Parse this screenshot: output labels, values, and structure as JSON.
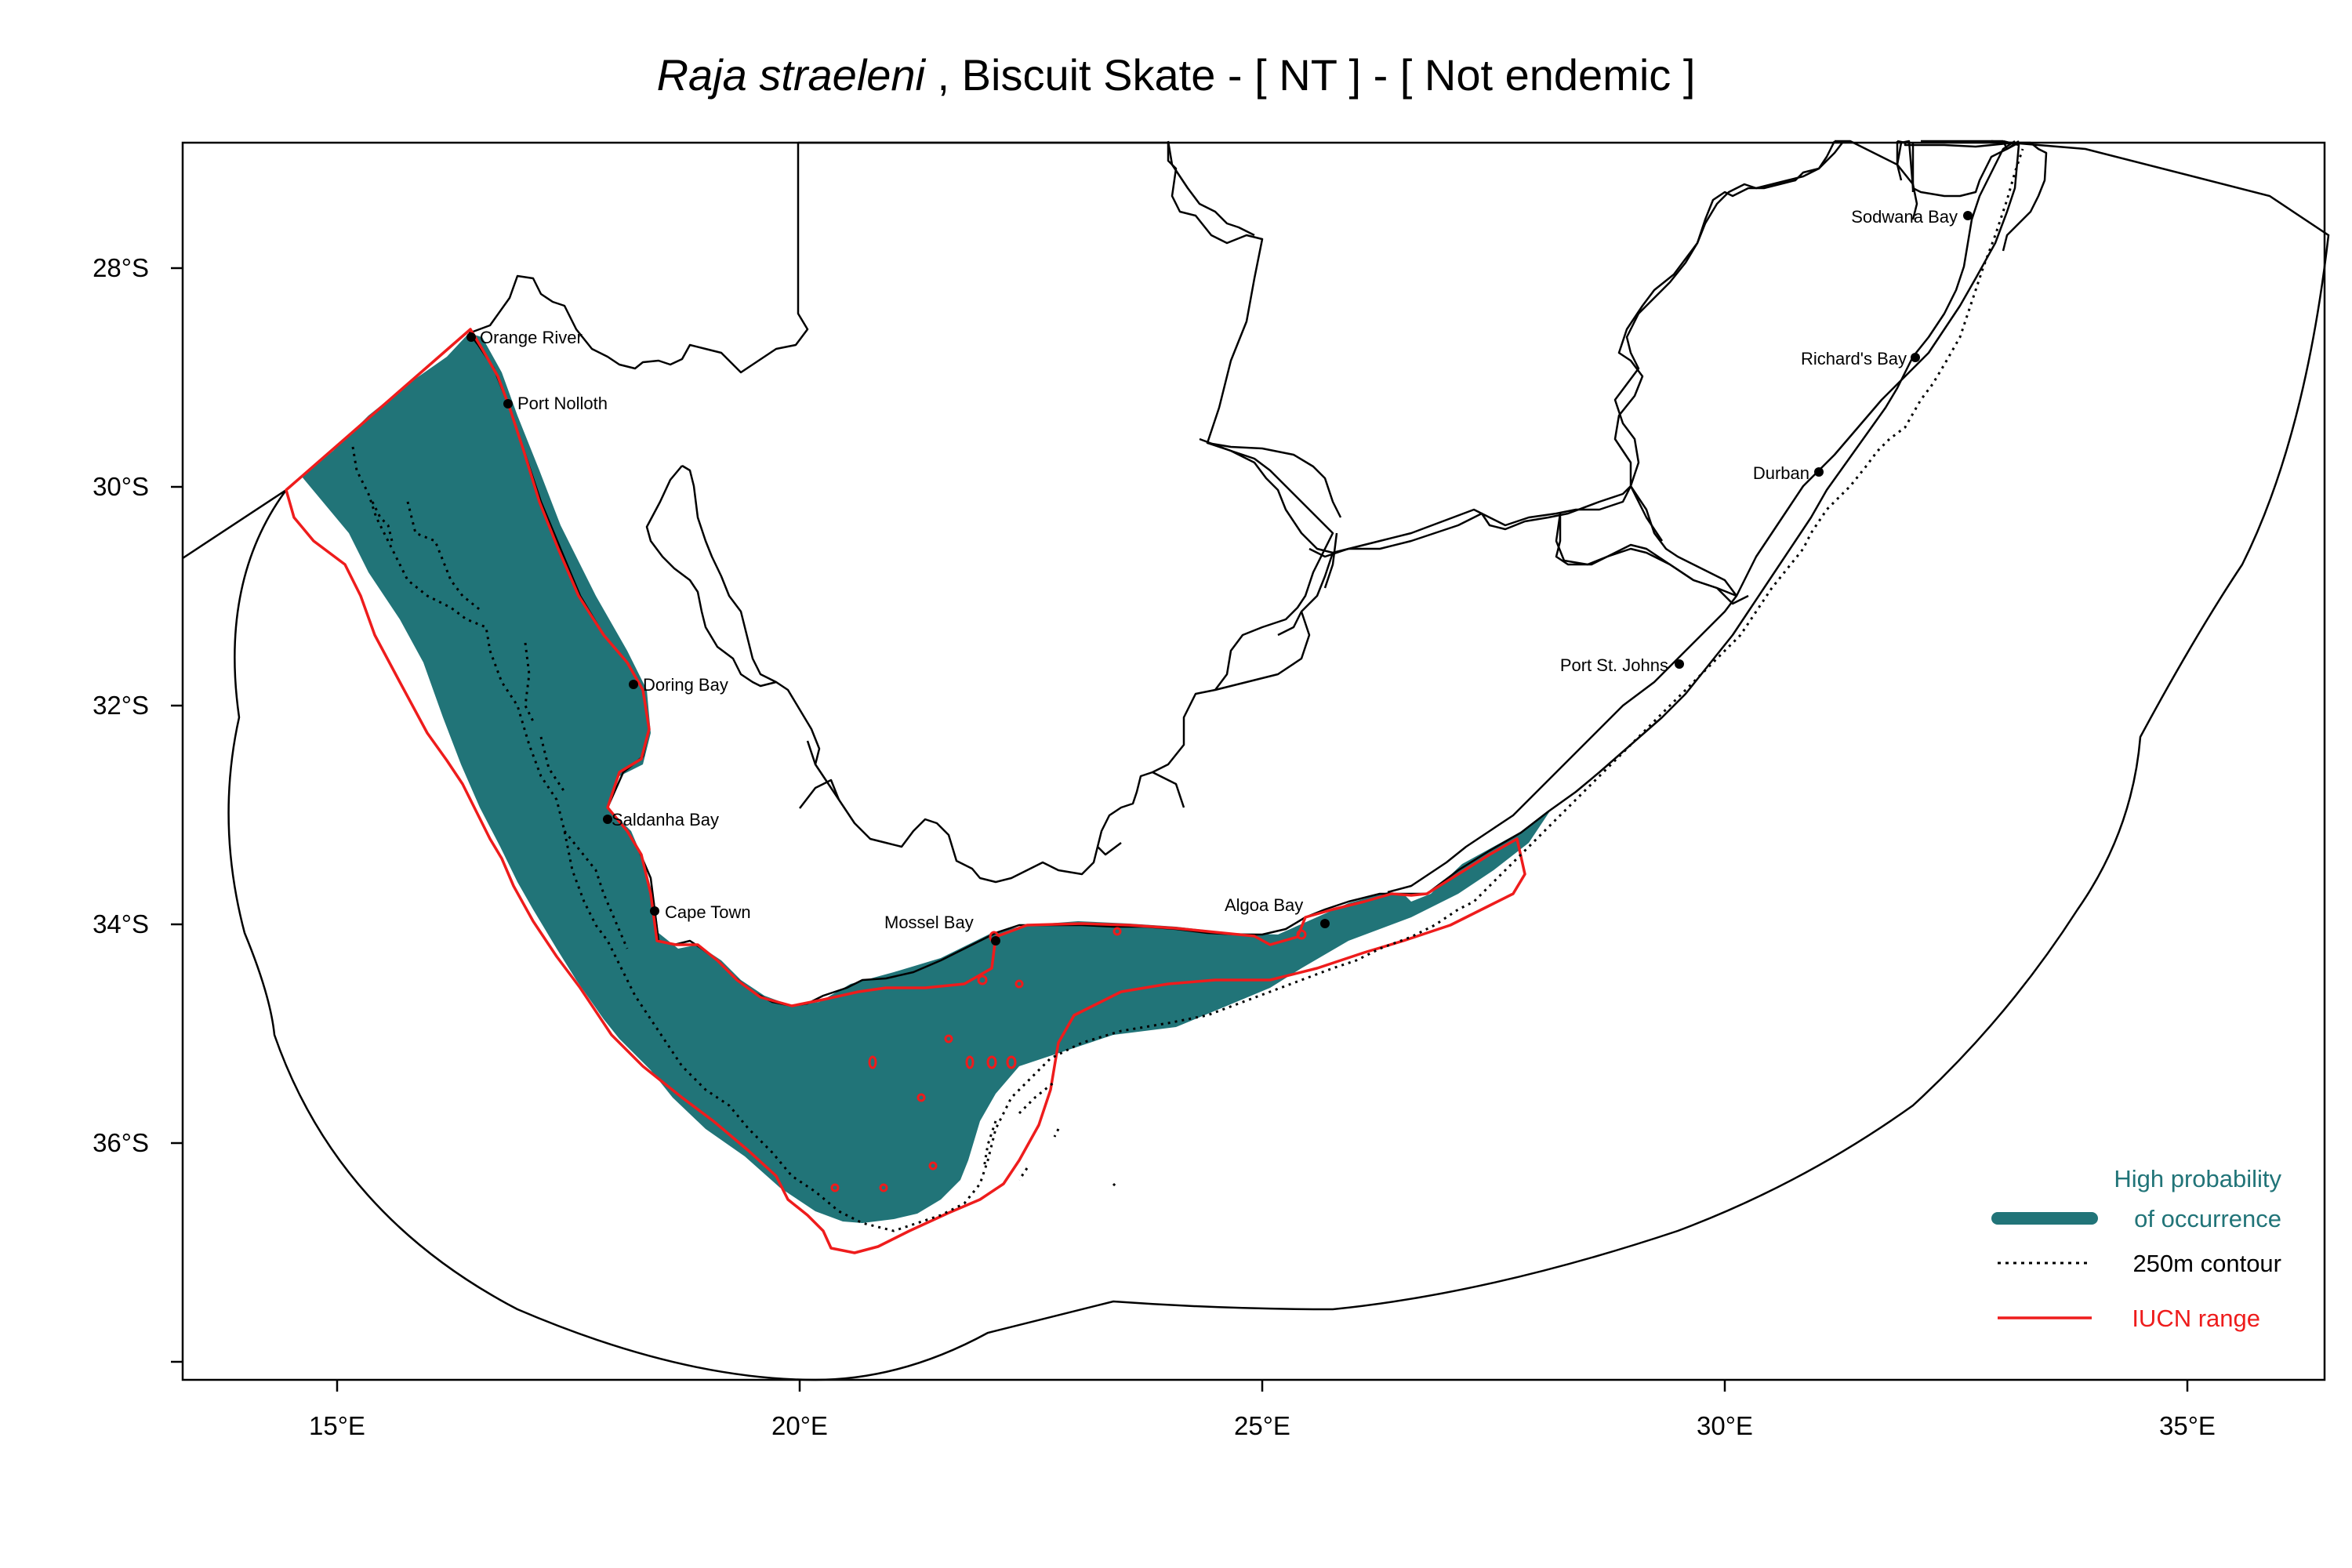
{
  "title": {
    "species": "Raja straeleni",
    "rest": " , Biscuit Skate  - [ NT ] - [ Not endemic ]"
  },
  "axes": {
    "x_ticks": [
      "15°E",
      "20°E",
      "25°E",
      "30°E",
      "35°E"
    ],
    "y_ticks": [
      "28°S",
      "30°S",
      "32°S",
      "34°S",
      "36°S"
    ]
  },
  "places": {
    "orange_river": "Orange River",
    "port_nolloth": "Port Nolloth",
    "doring_bay": "Doring Bay",
    "saldanha_bay": "Saldanha Bay",
    "cape_town": "Cape Town",
    "mossel_bay": "Mossel Bay",
    "algoa_bay": "Algoa Bay",
    "port_st_johns": "Port St. Johns",
    "durban": "Durban",
    "richards_bay": "Richard's Bay",
    "sodwana_bay": "Sodwana Bay"
  },
  "legend": {
    "high_line1": "High probability",
    "high_line2": "of occurrence",
    "contour": "250m contour",
    "iucn": "IUCN range"
  },
  "colors": {
    "occurrence": "#217478",
    "iucn": "#ee1c1c",
    "lines": "#000000"
  }
}
